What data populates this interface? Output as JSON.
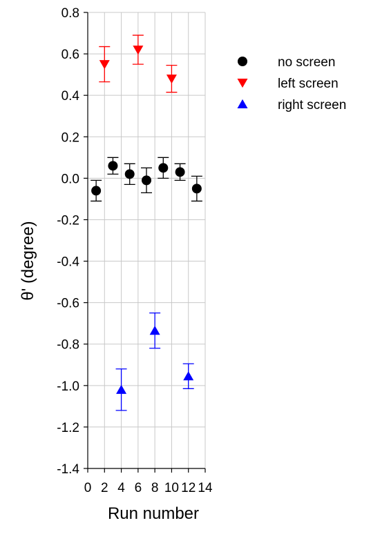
{
  "chart_data": {
    "type": "scatter",
    "title": "",
    "xlabel": "Run number",
    "ylabel": "θ' (degree)",
    "xlim": [
      0,
      14
    ],
    "ylim": [
      -1.4,
      0.8
    ],
    "x_ticks": [
      0,
      2,
      4,
      6,
      8,
      10,
      12,
      14
    ],
    "y_ticks": [
      0.8,
      0.6,
      0.4,
      0.2,
      0.0,
      -0.2,
      -0.4,
      -0.6,
      -0.8,
      -1.0,
      -1.2,
      -1.4
    ],
    "y_tick_labels": [
      "0.8",
      "0.6",
      "0.4",
      "0.2",
      "0.0",
      "-0.2",
      "-0.4",
      "-0.6",
      "-0.8",
      "-1.0",
      "-1.2",
      "-1.4"
    ],
    "grid": true,
    "legend_position": "right",
    "series": [
      {
        "name": "no screen",
        "marker": "circle",
        "color": "#000000",
        "points": [
          {
            "x": 1,
            "y": -0.06,
            "err": 0.05
          },
          {
            "x": 3,
            "y": 0.06,
            "err": 0.04
          },
          {
            "x": 5,
            "y": 0.02,
            "err": 0.05
          },
          {
            "x": 7,
            "y": -0.01,
            "err": 0.06
          },
          {
            "x": 9,
            "y": 0.05,
            "err": 0.05
          },
          {
            "x": 11,
            "y": 0.03,
            "err": 0.04
          },
          {
            "x": 13,
            "y": -0.05,
            "err": 0.06
          }
        ]
      },
      {
        "name": "left screen",
        "marker": "triangle-down",
        "color": "#ff0000",
        "points": [
          {
            "x": 2,
            "y": 0.55,
            "err": 0.085
          },
          {
            "x": 6,
            "y": 0.62,
            "err": 0.07
          },
          {
            "x": 10,
            "y": 0.48,
            "err": 0.065
          }
        ]
      },
      {
        "name": "right screen",
        "marker": "triangle-up",
        "color": "#0000ff",
        "points": [
          {
            "x": 4,
            "y": -1.02,
            "err": 0.1
          },
          {
            "x": 8,
            "y": -0.735,
            "err": 0.085
          },
          {
            "x": 12,
            "y": -0.955,
            "err": 0.06
          }
        ]
      }
    ]
  }
}
